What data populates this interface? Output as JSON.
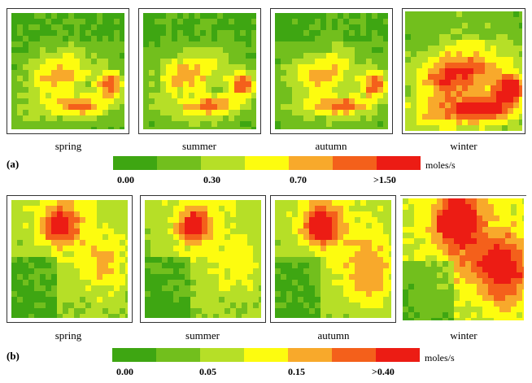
{
  "palette": [
    "#3ea612",
    "#72bf1d",
    "#b6df27",
    "#fdfc0f",
    "#f8a92b",
    "#f4601b",
    "#ec1c14"
  ],
  "row_a": {
    "panel_label": "(a)",
    "captions": [
      "spring",
      "summer",
      "autumn",
      "winter"
    ],
    "legend_ticks": [
      "0.00",
      "0.30",
      "0.70",
      ">1.50"
    ],
    "legend_unit": "moles/s"
  },
  "row_b": {
    "panel_label": "(b)",
    "captions": [
      "spring",
      "summer",
      "autumn",
      "winter"
    ],
    "legend_ticks": [
      "0.00",
      "0.05",
      "0.15",
      ">0.40"
    ],
    "legend_unit": "moles/s"
  }
}
